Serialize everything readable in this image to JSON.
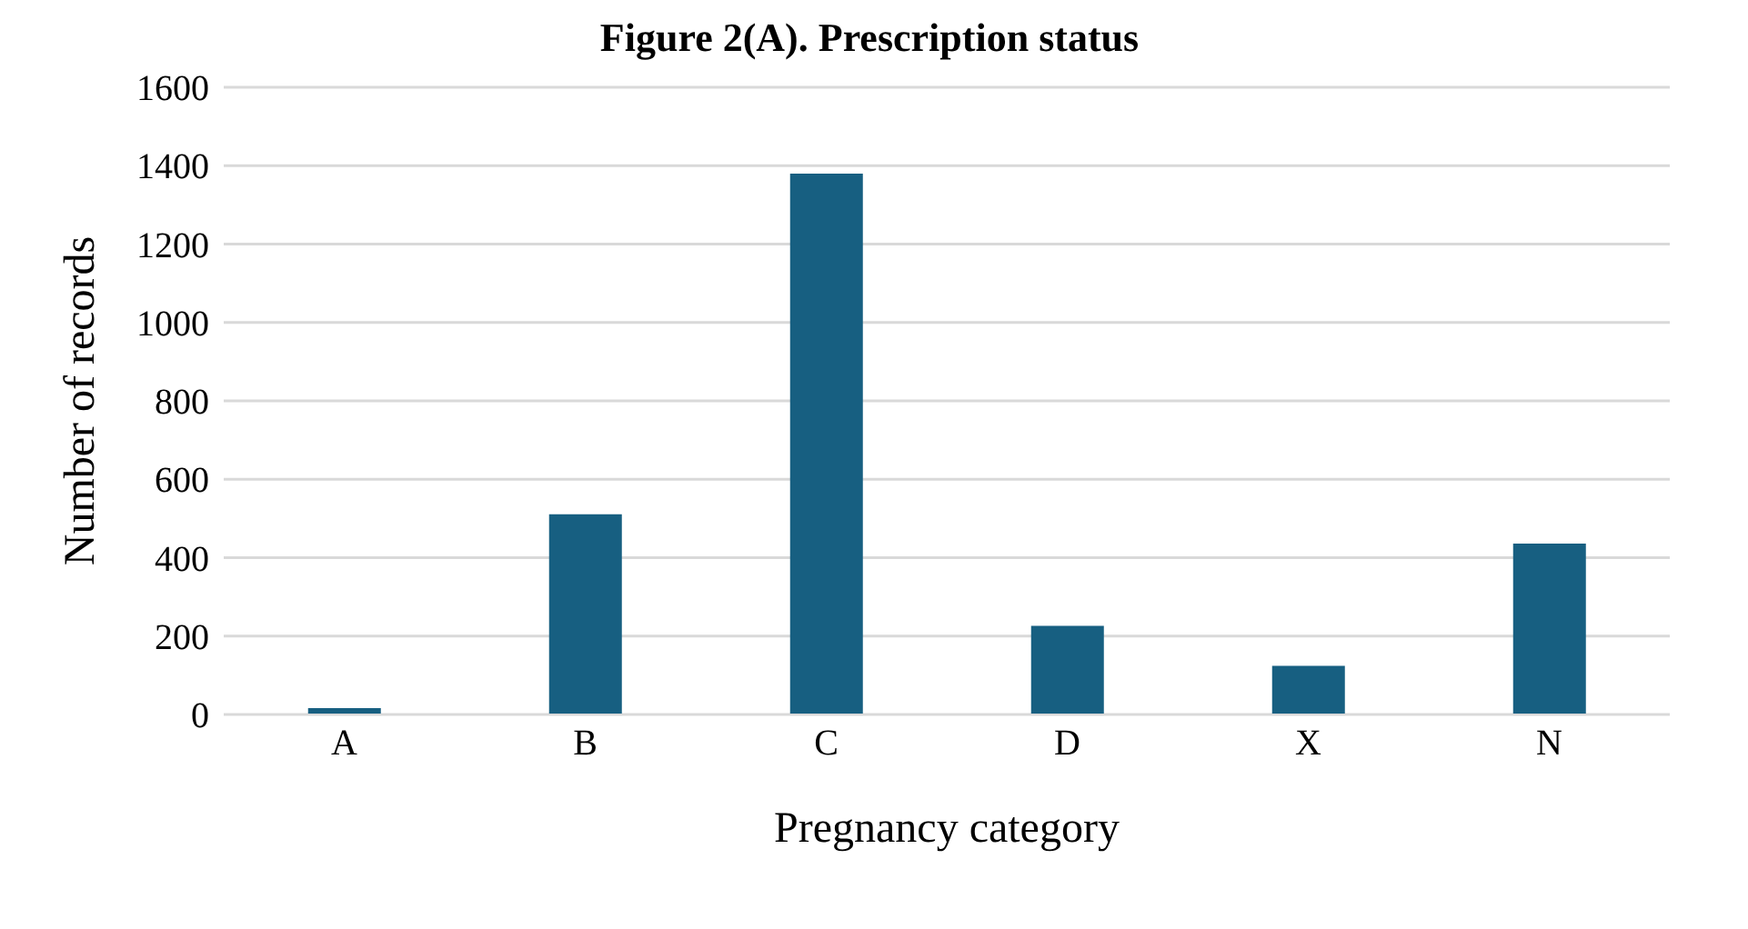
{
  "chart_data": {
    "type": "bar",
    "title": "Figure 2(A). Prescription status",
    "xlabel": "Pregnancy category",
    "ylabel": "Number of records",
    "categories": [
      "A",
      "B",
      "C",
      "D",
      "X",
      "N"
    ],
    "values": [
      16,
      511,
      1380,
      226,
      124,
      436
    ],
    "color": "#175f81",
    "ylim": [
      0,
      1600
    ],
    "yticks": [
      0,
      200,
      400,
      600,
      800,
      1000,
      1200,
      1400,
      1600
    ],
    "grid": "y"
  }
}
